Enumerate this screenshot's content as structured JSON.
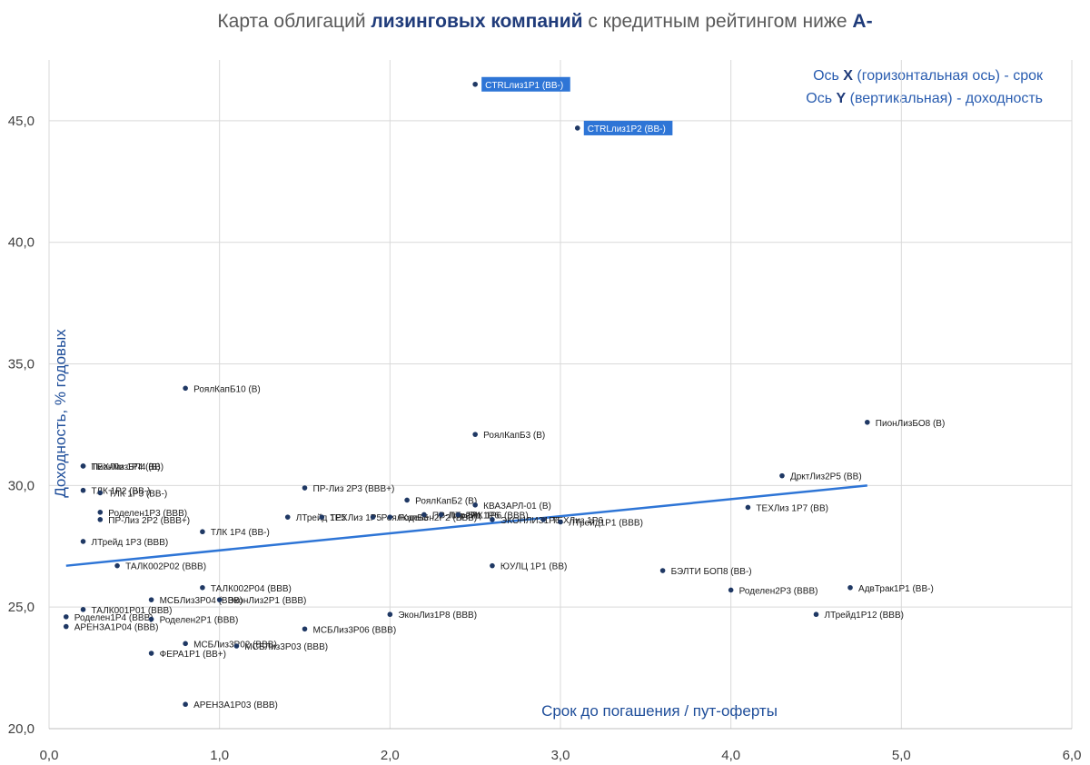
{
  "title": {
    "prefix": "Карта облигаций ",
    "bold1": "лизинговых компаний",
    "middle": " с кредитным рейтингом ниже ",
    "bold2": "А-"
  },
  "notes": {
    "x_prefix": "Ось ",
    "x_letter": "X",
    "x_suffix": " (горизонтальная ось) - срок",
    "y_prefix": "Ось ",
    "y_letter": "Y",
    "y_suffix": " (вертикальная) - доходность"
  },
  "colors": {
    "point": "#1f3864",
    "trend": "#2e75d6",
    "highlight_bg": "#2e75d6",
    "grid": "#d9d9d9",
    "axis_label": "#1f4e9a"
  },
  "chart_data": {
    "type": "scatter",
    "title": "Карта облигаций лизинговых компаний с кредитным рейтингом ниже А-",
    "xlabel": "Срок до погашения / пут-оферты",
    "ylabel": "Доходность, % годовых",
    "xlim": [
      0,
      6
    ],
    "ylim": [
      20,
      47.5
    ],
    "xticks": [
      0,
      1,
      2,
      3,
      4,
      5,
      6
    ],
    "yticks": [
      20,
      25,
      30,
      35,
      40,
      45
    ],
    "xtick_labels": [
      "0,0",
      "1,0",
      "2,0",
      "3,0",
      "4,0",
      "5,0",
      "6,0"
    ],
    "ytick_labels": [
      "20,0",
      "25,0",
      "30,0",
      "35,0",
      "40,0",
      "45,0"
    ],
    "grid": true,
    "trendline": {
      "x": [
        0.1,
        4.8
      ],
      "y": [
        26.7,
        30.0
      ]
    },
    "points": [
      {
        "x": 2.5,
        "y": 46.5,
        "label": "CTRLлиз1P1 (BB-)",
        "highlight": true
      },
      {
        "x": 3.1,
        "y": 44.7,
        "label": "CTRLлиз1P2 (BB-)",
        "highlight": true
      },
      {
        "x": 0.8,
        "y": 34.0,
        "label": "РоялКапБ10 (B)"
      },
      {
        "x": 2.5,
        "y": 32.1,
        "label": "РоялКапБ3 (B)"
      },
      {
        "x": 4.8,
        "y": 32.6,
        "label": "ПионЛизБО8 (B)"
      },
      {
        "x": 4.3,
        "y": 30.4,
        "label": "ДрктЛиз2Р5 (BB)"
      },
      {
        "x": 0.2,
        "y": 30.8,
        "label": "ПионЛизБП4 (B)"
      },
      {
        "x": 0.2,
        "y": 30.8,
        "label": "ТЕХЛиз 1Р4 (BB)"
      },
      {
        "x": 0.2,
        "y": 29.8,
        "label": "ТЛК 1Р2 (BB-)"
      },
      {
        "x": 0.3,
        "y": 29.7,
        "label": "ТЛК 1Р3 (BB-)"
      },
      {
        "x": 1.5,
        "y": 29.9,
        "label": "ПР-Лиз 2Р3 (BBB+)"
      },
      {
        "x": 2.1,
        "y": 29.4,
        "label": "РоялКапБ2 (B)"
      },
      {
        "x": 2.5,
        "y": 29.2,
        "label": "КВАЗАРЛ-01 (B)"
      },
      {
        "x": 0.3,
        "y": 28.9,
        "label": "Роделен1Р3 (BBB)"
      },
      {
        "x": 0.3,
        "y": 28.6,
        "label": "ПР-Лиз 2Р2 (BBB+)"
      },
      {
        "x": 0.9,
        "y": 28.1,
        "label": "ТЛК 1Р4 (BB-)"
      },
      {
        "x": 4.1,
        "y": 29.1,
        "label": "ТЕХЛиз 1Р7 (BB)"
      },
      {
        "x": 1.4,
        "y": 28.7,
        "label": "ЛТрейд 1Р5"
      },
      {
        "x": 1.6,
        "y": 28.7,
        "label": "ТЕХЛиз 1Р5"
      },
      {
        "x": 1.9,
        "y": 28.7,
        "label": "РоялКапБ5"
      },
      {
        "x": 2.0,
        "y": 28.7,
        "label": "Роделен2Р2 (BBB)"
      },
      {
        "x": 2.2,
        "y": 28.8,
        "label": "ПР-Лиз 2Р1"
      },
      {
        "x": 2.3,
        "y": 28.8,
        "label": "ЛТрейд 1Р6"
      },
      {
        "x": 2.4,
        "y": 28.8,
        "label": "ТЛК 1Р6 (BBB)"
      },
      {
        "x": 2.6,
        "y": 28.6,
        "label": "ЭКОНЛИЗ1Р6"
      },
      {
        "x": 2.9,
        "y": 28.6,
        "label": "ТЕХЛиз 1Р6"
      },
      {
        "x": 3.0,
        "y": 28.5,
        "label": "ЛТрейд1Р1 (BBB)"
      },
      {
        "x": 0.2,
        "y": 27.7,
        "label": "ЛТрейд 1Р3 (BBB)"
      },
      {
        "x": 0.4,
        "y": 26.7,
        "label": "ТАЛК002Р02 (BBB)"
      },
      {
        "x": 2.6,
        "y": 26.7,
        "label": "ЮУЛЦ 1Р1 (BB)"
      },
      {
        "x": 3.6,
        "y": 26.5,
        "label": "БЭЛТИ БОП8 (BB-)"
      },
      {
        "x": 0.9,
        "y": 25.8,
        "label": "ТАЛК002Р04 (BBB)"
      },
      {
        "x": 4.0,
        "y": 25.7,
        "label": "Роделен2Р3 (BBB)"
      },
      {
        "x": 4.7,
        "y": 25.8,
        "label": "АдвТрак1Р1 (BB-)"
      },
      {
        "x": 0.6,
        "y": 25.3,
        "label": "МСБЛиз3Р04 (BBB)"
      },
      {
        "x": 1.0,
        "y": 25.3,
        "label": "ЭконЛиз2Р1 (BBB)"
      },
      {
        "x": 0.2,
        "y": 24.9,
        "label": "ТАЛК001Р01 (BBB)"
      },
      {
        "x": 0.1,
        "y": 24.6,
        "label": "Роделен1Р4 (BBB)"
      },
      {
        "x": 0.6,
        "y": 24.5,
        "label": "Роделен2Р1 (BBB)"
      },
      {
        "x": 2.0,
        "y": 24.7,
        "label": "ЭконЛиз1Р8 (BBB)"
      },
      {
        "x": 4.5,
        "y": 24.7,
        "label": "ЛТрейд1Р12 (BBB)"
      },
      {
        "x": 0.1,
        "y": 24.2,
        "label": "АРЕНЗА1Р04 (BBB)"
      },
      {
        "x": 1.5,
        "y": 24.1,
        "label": "МСБЛиз3Р06 (BBB)"
      },
      {
        "x": 0.8,
        "y": 23.5,
        "label": "МСБЛиз3Р02 (BBB)"
      },
      {
        "x": 1.1,
        "y": 23.4,
        "label": "МСБЛиз3Р03 (BBB)"
      },
      {
        "x": 0.6,
        "y": 23.1,
        "label": "ФЕРА1Р1 (BB+)"
      },
      {
        "x": 0.8,
        "y": 21.0,
        "label": "АРЕНЗА1Р03 (BBB)"
      }
    ]
  }
}
